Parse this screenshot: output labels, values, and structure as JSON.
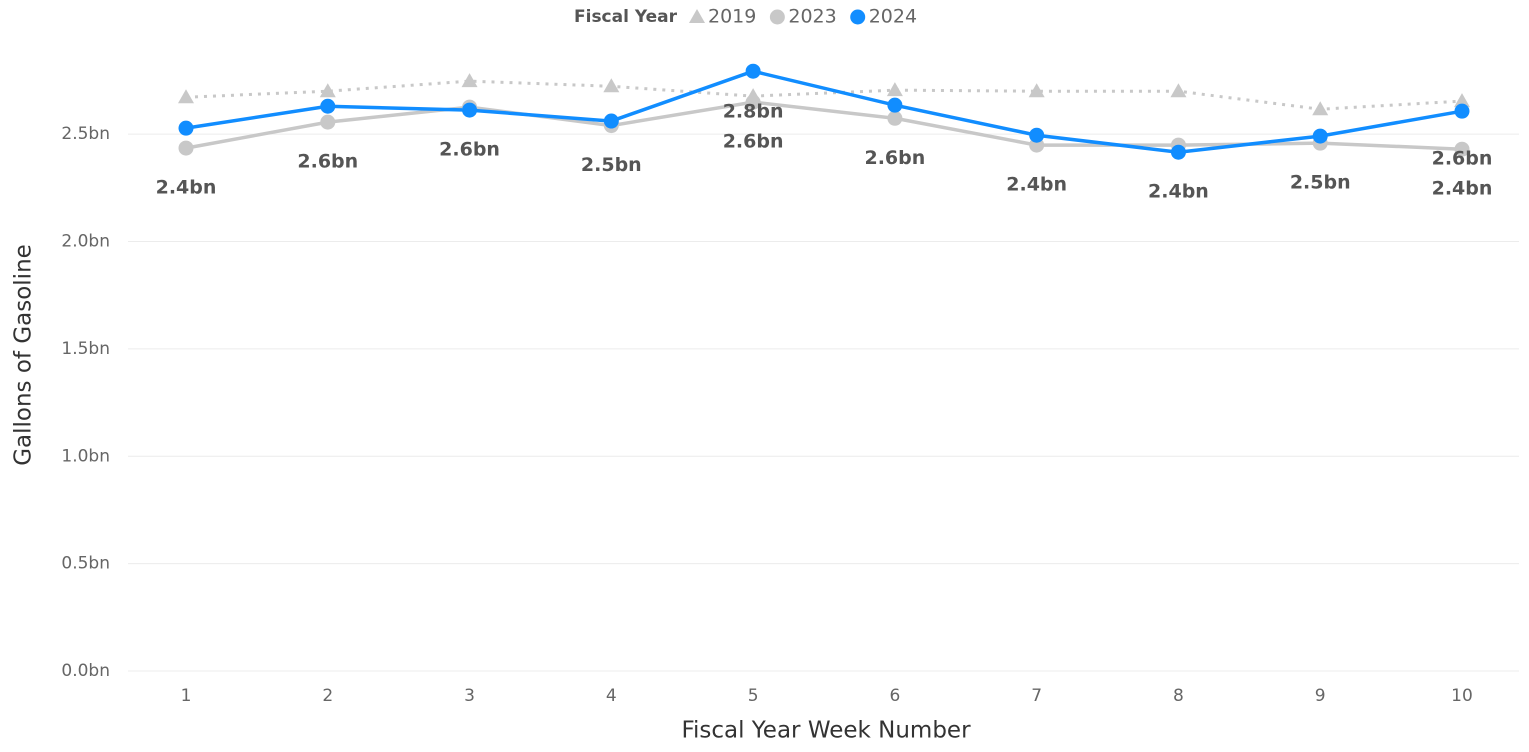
{
  "chart_data": {
    "type": "line",
    "legend_title": "Fiscal Year",
    "x_label": "Fiscal Year Week Number",
    "y_label": "Gallons of Gasoline",
    "categories": [
      "1",
      "2",
      "3",
      "4",
      "5",
      "6",
      "7",
      "8",
      "9",
      "10"
    ],
    "series": [
      {
        "name": "2019",
        "color": "#c8c8c8",
        "marker": "triangle",
        "line_style": "dotted",
        "values": [
          2.672,
          2.7,
          2.747,
          2.723,
          2.677,
          2.705,
          2.7,
          2.7,
          2.616,
          2.654
        ]
      },
      {
        "name": "2023",
        "color": "#c8c8c8",
        "marker": "circle",
        "line_style": "solid",
        "values": [
          2.435,
          2.556,
          2.626,
          2.54,
          2.649,
          2.574,
          2.449,
          2.449,
          2.458,
          2.43
        ],
        "value_labels": [
          "2.4bn",
          null,
          null,
          "2.5bn",
          "2.6bn",
          null,
          "2.4bn",
          null,
          null,
          "2.4bn"
        ]
      },
      {
        "name": "2024",
        "color": "#118dff",
        "marker": "circle",
        "line_style": "solid",
        "values": [
          2.528,
          2.63,
          2.612,
          2.561,
          2.793,
          2.635,
          2.495,
          2.416,
          2.491,
          2.607
        ],
        "value_labels": [
          null,
          "2.6bn",
          "2.6bn",
          null,
          "2.8bn",
          "2.6bn",
          null,
          "2.4bn",
          "2.5bn",
          "2.6bn"
        ]
      }
    ],
    "ylim": [
      0,
      2.85
    ],
    "yticks": [
      {
        "value": 0,
        "label": "0.0bn"
      },
      {
        "value": 0.5,
        "label": "0.5bn"
      },
      {
        "value": 1,
        "label": "1.0bn"
      },
      {
        "value": 1.5,
        "label": "1.5bn"
      },
      {
        "value": 2,
        "label": "2.0bn"
      },
      {
        "value": 2.5,
        "label": "2.5bn"
      }
    ],
    "grid": true
  }
}
